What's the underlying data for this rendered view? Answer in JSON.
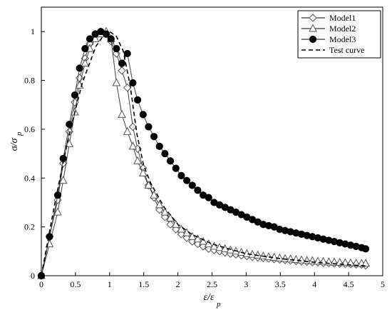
{
  "chart_data": {
    "type": "line",
    "title": "",
    "xlabel": "ε/ε",
    "xlabel_sub": "p",
    "ylabel": "σ/σ",
    "ylabel_sub": "p",
    "xlim": [
      0,
      5
    ],
    "ylim": [
      0,
      1.1
    ],
    "x_ticks": [
      "0",
      "0.5",
      "1",
      "1.5",
      "2",
      "2.5",
      "3",
      "3.5",
      "4",
      "4.5",
      "5"
    ],
    "y_ticks": [
      "0",
      "0.2",
      "0.4",
      "0.6",
      "0.8",
      "1"
    ],
    "grid": false,
    "legend_position": "top-right",
    "series": [
      {
        "name": "Model1",
        "marker": "diamond",
        "x": [
          0,
          0.12,
          0.24,
          0.32,
          0.41,
          0.49,
          0.56,
          0.64,
          0.71,
          0.79,
          0.87,
          0.95,
          1.02,
          1.1,
          1.18,
          1.26,
          1.34,
          1.41,
          1.49,
          1.57,
          1.65,
          1.73,
          1.81,
          1.89,
          1.97,
          2.05,
          2.13,
          2.21,
          2.29,
          2.37,
          2.45,
          2.53,
          2.61,
          2.69,
          2.77,
          2.85,
          2.93,
          3.01,
          3.09,
          3.17,
          3.25,
          3.33,
          3.41,
          3.49,
          3.57,
          3.65,
          3.73,
          3.81,
          3.89,
          3.97,
          4.05,
          4.13,
          4.21,
          4.29,
          4.37,
          4.45,
          4.53,
          4.61,
          4.69,
          4.75
        ],
        "y": [
          0,
          0.16,
          0.31,
          0.46,
          0.59,
          0.71,
          0.81,
          0.89,
          0.95,
          0.99,
          1.0,
          0.99,
          0.96,
          0.91,
          0.84,
          0.77,
          0.61,
          0.52,
          0.44,
          0.37,
          0.32,
          0.27,
          0.24,
          0.21,
          0.19,
          0.17,
          0.155,
          0.14,
          0.13,
          0.12,
          0.11,
          0.105,
          0.1,
          0.095,
          0.09,
          0.087,
          0.083,
          0.08,
          0.077,
          0.075,
          0.072,
          0.07,
          0.068,
          0.066,
          0.064,
          0.062,
          0.06,
          0.058,
          0.057,
          0.055,
          0.054,
          0.052,
          0.051,
          0.05,
          0.049,
          0.048,
          0.047,
          0.046,
          0.045,
          0.042
        ]
      },
      {
        "name": "Model2",
        "marker": "triangle",
        "x": [
          0,
          0.12,
          0.24,
          0.32,
          0.41,
          0.49,
          0.56,
          0.64,
          0.71,
          0.79,
          0.87,
          0.95,
          1.02,
          1.1,
          1.18,
          1.26,
          1.34,
          1.41,
          1.49,
          1.57,
          1.65,
          1.73,
          1.81,
          1.89,
          1.97,
          2.05,
          2.13,
          2.21,
          2.29,
          2.37,
          2.45,
          2.53,
          2.61,
          2.69,
          2.77,
          2.85,
          2.93,
          3.01,
          3.09,
          3.17,
          3.25,
          3.33,
          3.41,
          3.49,
          3.57,
          3.65,
          3.73,
          3.81,
          3.89,
          3.97,
          4.05,
          4.13,
          4.21,
          4.29,
          4.37,
          4.45,
          4.53,
          4.61,
          4.69,
          4.75
        ],
        "y": [
          0,
          0.13,
          0.26,
          0.39,
          0.54,
          0.67,
          0.78,
          0.87,
          0.93,
          0.97,
          0.99,
          1.0,
          0.97,
          0.79,
          0.66,
          0.59,
          0.53,
          0.47,
          0.42,
          0.37,
          0.33,
          0.29,
          0.26,
          0.235,
          0.21,
          0.19,
          0.175,
          0.16,
          0.15,
          0.14,
          0.13,
          0.12,
          0.115,
          0.11,
          0.105,
          0.1,
          0.095,
          0.09,
          0.087,
          0.084,
          0.08,
          0.077,
          0.075,
          0.072,
          0.07,
          0.068,
          0.066,
          0.064,
          0.062,
          0.061,
          0.059,
          0.058,
          0.056,
          0.055,
          0.054,
          0.053,
          0.052,
          0.051,
          0.05,
          0.05
        ]
      },
      {
        "name": "Model3",
        "marker": "circle",
        "x": [
          0,
          0.12,
          0.24,
          0.32,
          0.41,
          0.49,
          0.56,
          0.64,
          0.71,
          0.79,
          0.87,
          0.95,
          1.02,
          1.1,
          1.18,
          1.26,
          1.34,
          1.41,
          1.49,
          1.57,
          1.65,
          1.73,
          1.81,
          1.89,
          1.97,
          2.05,
          2.13,
          2.21,
          2.29,
          2.37,
          2.45,
          2.53,
          2.61,
          2.69,
          2.77,
          2.85,
          2.93,
          3.01,
          3.09,
          3.17,
          3.25,
          3.33,
          3.41,
          3.49,
          3.57,
          3.65,
          3.73,
          3.81,
          3.89,
          3.97,
          4.05,
          4.13,
          4.21,
          4.29,
          4.37,
          4.45,
          4.53,
          4.61,
          4.69,
          4.75
        ],
        "y": [
          0,
          0.16,
          0.33,
          0.48,
          0.62,
          0.74,
          0.85,
          0.93,
          0.97,
          0.99,
          1.0,
          0.99,
          0.97,
          0.93,
          0.87,
          0.91,
          0.79,
          0.72,
          0.66,
          0.61,
          0.57,
          0.53,
          0.5,
          0.47,
          0.44,
          0.41,
          0.39,
          0.37,
          0.35,
          0.33,
          0.32,
          0.3,
          0.29,
          0.28,
          0.27,
          0.26,
          0.25,
          0.24,
          0.23,
          0.22,
          0.21,
          0.205,
          0.2,
          0.19,
          0.185,
          0.18,
          0.175,
          0.17,
          0.165,
          0.16,
          0.155,
          0.15,
          0.145,
          0.14,
          0.135,
          0.13,
          0.125,
          0.12,
          0.115,
          0.11
        ]
      },
      {
        "name": "Test curve",
        "marker": "none",
        "line_style": "dashed",
        "x": [
          0,
          0.2,
          0.4,
          0.6,
          0.8,
          0.9,
          1.0,
          1.1,
          1.2,
          1.3,
          1.4,
          1.5,
          1.6,
          1.8,
          2.0,
          2.2,
          2.5,
          3.0,
          3.5,
          4.0,
          4.5,
          4.75
        ],
        "y": [
          0,
          0.3,
          0.57,
          0.79,
          0.94,
          0.98,
          1.0,
          0.98,
          0.92,
          0.78,
          0.58,
          0.45,
          0.38,
          0.28,
          0.21,
          0.17,
          0.13,
          0.09,
          0.07,
          0.055,
          0.045,
          0.04
        ]
      }
    ]
  }
}
